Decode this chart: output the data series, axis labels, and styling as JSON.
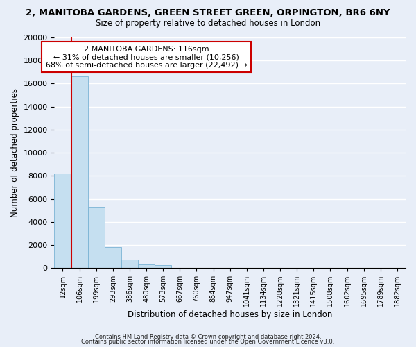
{
  "title": "2, MANITOBA GARDENS, GREEN STREET GREEN, ORPINGTON, BR6 6NY",
  "subtitle": "Size of property relative to detached houses in London",
  "xlabel": "Distribution of detached houses by size in London",
  "ylabel": "Number of detached properties",
  "bar_labels": [
    "12sqm",
    "106sqm",
    "199sqm",
    "293sqm",
    "386sqm",
    "480sqm",
    "573sqm",
    "667sqm",
    "760sqm",
    "854sqm",
    "947sqm",
    "1041sqm",
    "1134sqm",
    "1228sqm",
    "1321sqm",
    "1415sqm",
    "1508sqm",
    "1602sqm",
    "1695sqm",
    "1789sqm",
    "1882sqm"
  ],
  "bar_values": [
    8200,
    16600,
    5300,
    1800,
    750,
    300,
    250,
    0,
    0,
    0,
    0,
    0,
    0,
    0,
    0,
    0,
    0,
    0,
    0,
    0,
    0
  ],
  "bar_color": "#c5dff0",
  "bar_edge_color": "#7ab3d4",
  "ylim": [
    0,
    20000
  ],
  "yticks": [
    0,
    2000,
    4000,
    6000,
    8000,
    10000,
    12000,
    14000,
    16000,
    18000,
    20000
  ],
  "property_line_color": "#cc0000",
  "annotation_title": "2 MANITOBA GARDENS: 116sqm",
  "annotation_line1": "← 31% of detached houses are smaller (10,256)",
  "annotation_line2": "68% of semi-detached houses are larger (22,492) →",
  "background_color": "#e8eef8",
  "grid_color": "#ffffff",
  "footer_line1": "Contains HM Land Registry data © Crown copyright and database right 2024.",
  "footer_line2": "Contains public sector information licensed under the Open Government Licence v3.0."
}
